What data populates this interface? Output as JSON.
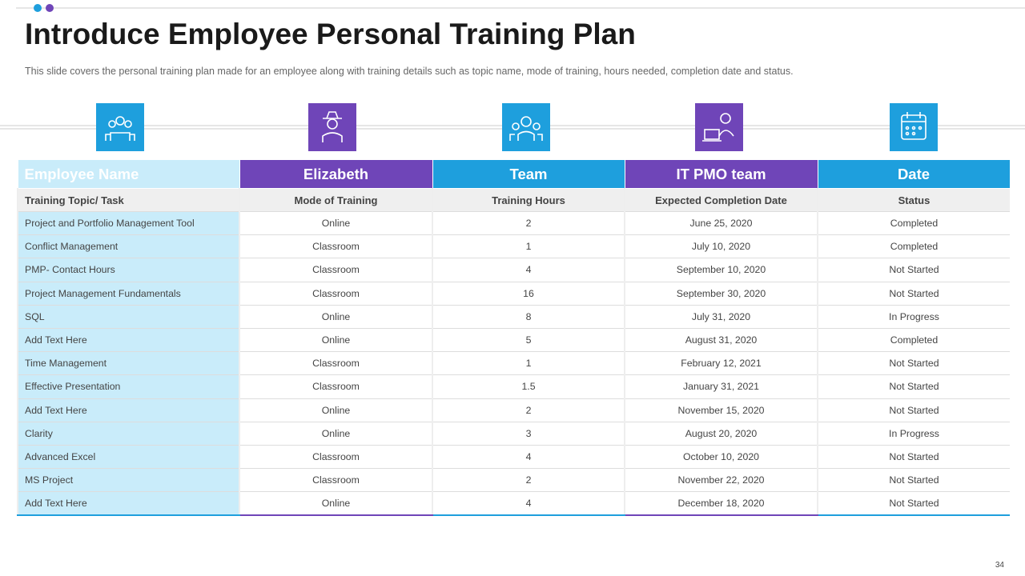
{
  "header": {
    "title": "Introduce Employee Personal Training Plan",
    "subtitle": "This slide covers the personal training plan made for an employee along with training details such as topic name, mode of training, hours needed, completion date and status."
  },
  "table": {
    "header": [
      "Employee Name",
      "Elizabeth",
      "Team",
      "IT PMO team",
      "Date"
    ],
    "columns": [
      "Training Topic/ Task",
      "Mode of  Training",
      "Training Hours",
      "Expected Completion Date",
      "Status"
    ],
    "rows": [
      [
        "Project and Portfolio Management Tool",
        "Online",
        2,
        "June 25, 2020",
        "Completed"
      ],
      [
        "Conflict Management",
        "Classroom",
        1,
        "July 10, 2020",
        "Completed"
      ],
      [
        "PMP- Contact Hours",
        "Classroom",
        4,
        "September 10, 2020",
        "Not Started"
      ],
      [
        "Project Management Fundamentals",
        "Classroom",
        16,
        "September 30, 2020",
        "Not Started"
      ],
      [
        "SQL",
        "Online",
        8,
        "July 31, 2020",
        "In Progress"
      ],
      [
        "Add Text Here",
        "Online",
        5,
        "August 31, 2020",
        "Completed"
      ],
      [
        "Time Management",
        "Classroom",
        1,
        "February 12, 2021",
        "Not Started"
      ],
      [
        "Effective Presentation",
        "Classroom",
        1.5,
        "January 31, 2021",
        "Not Started"
      ],
      [
        "Add Text Here",
        "Online",
        2,
        "November 15, 2020",
        "Not Started"
      ],
      [
        "Clarity",
        "Online",
        3,
        "August 20, 2020",
        "In Progress"
      ],
      [
        "Advanced Excel",
        "Classroom",
        4,
        "October 10, 2020",
        "Not Started"
      ],
      [
        "MS Project",
        "Classroom",
        2,
        "November 22, 2020",
        "Not Started"
      ],
      [
        "Add Text Here",
        "Online",
        4,
        "December 18, 2020",
        "Not Started"
      ]
    ]
  },
  "footer": {
    "page": "34"
  }
}
